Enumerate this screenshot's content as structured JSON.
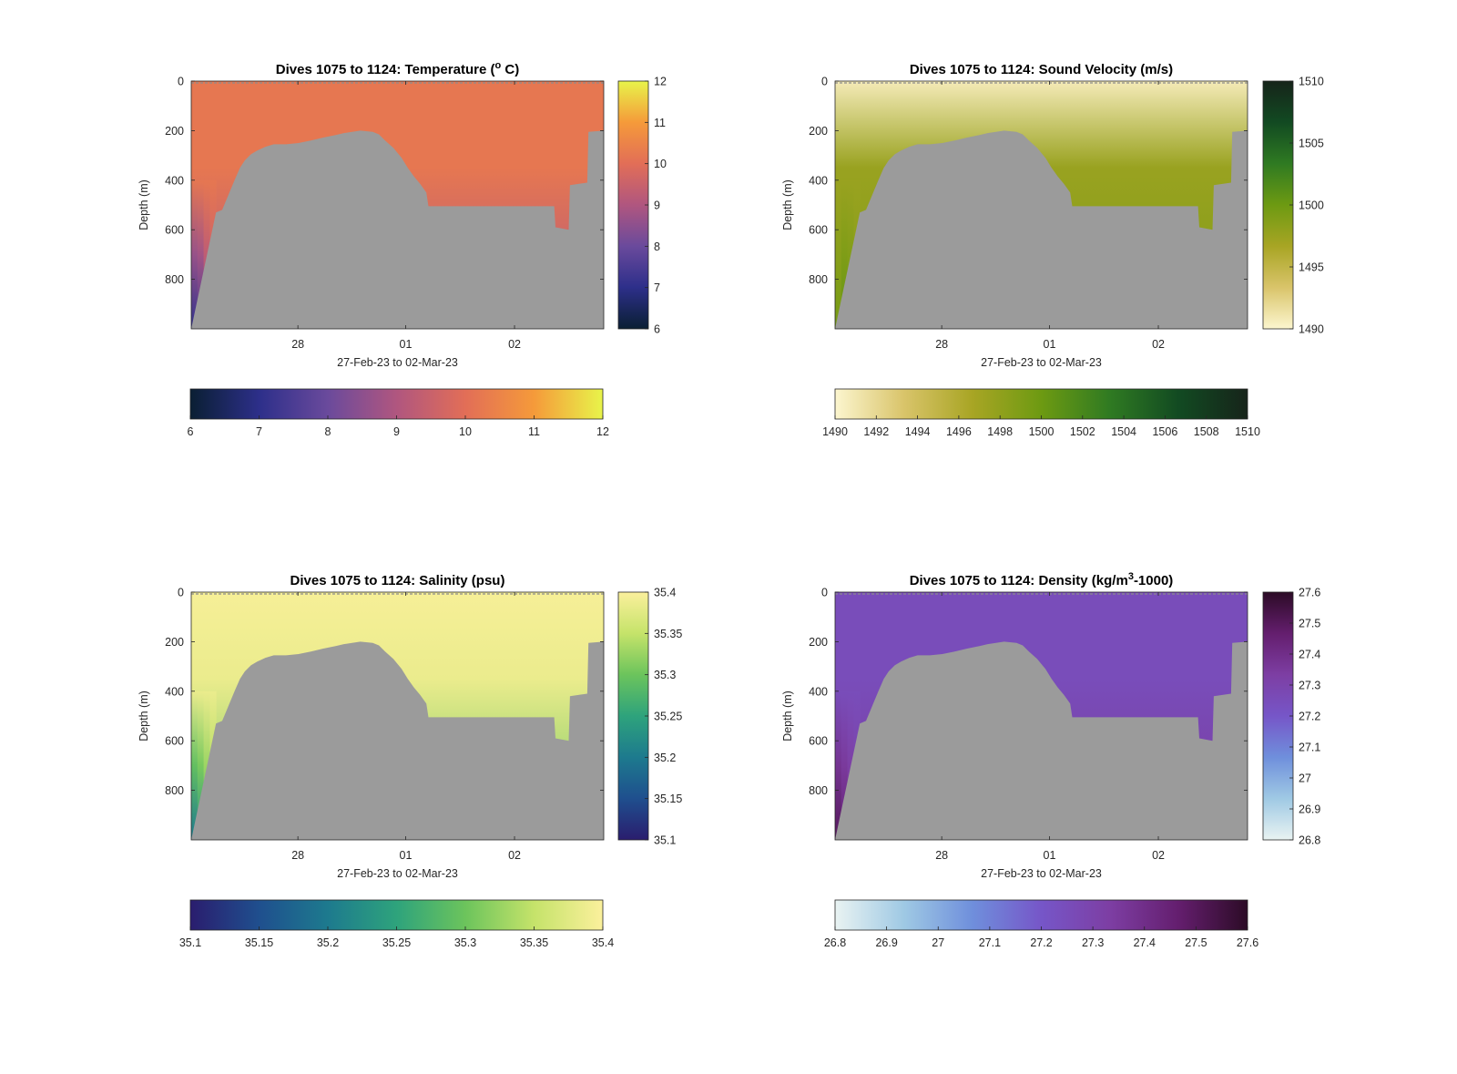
{
  "chart_data": [
    {
      "type": "heatmap",
      "title_main": "Dives 1075 to 1124: Temperature (",
      "title_sup": "o",
      "title_tail": " C)",
      "xlabel": "27-Feb-23 to 02-Mar-23",
      "ylabel": "Depth (m)",
      "x_ticks": [
        "28",
        "01",
        "02"
      ],
      "y_ticks": [
        "0",
        "200",
        "400",
        "600",
        "800"
      ],
      "ylim": [
        0,
        1000
      ],
      "colorbar_ticks": [
        "6",
        "7",
        "8",
        "9",
        "10",
        "11",
        "12"
      ],
      "h_colorbar_ticks": [
        "6",
        "7",
        "8",
        "9",
        "10",
        "11",
        "12"
      ],
      "clim": [
        6,
        12
      ],
      "colormap": [
        "#0a1f33",
        "#2d2f8a",
        "#6a4a9c",
        "#b0567f",
        "#e26e57",
        "#f59a3a",
        "#e8f44a"
      ],
      "surface_value": 10.2,
      "deep_values": [
        7.1,
        7.4,
        8.4,
        9.0
      ],
      "shallow_band": false
    },
    {
      "type": "heatmap",
      "title_main": "Dives 1075 to 1124: Sound Velocity (m/s)",
      "title_sup": "",
      "title_tail": "",
      "xlabel": "27-Feb-23 to 02-Mar-23",
      "ylabel": "Depth (m)",
      "x_ticks": [
        "28",
        "01",
        "02"
      ],
      "y_ticks": [
        "0",
        "200",
        "400",
        "600",
        "800"
      ],
      "ylim": [
        0,
        1000
      ],
      "colorbar_ticks": [
        "1490",
        "1495",
        "1500",
        "1505",
        "1510"
      ],
      "h_colorbar_ticks": [
        "1490",
        "1492",
        "1494",
        "1496",
        "1498",
        "1500",
        "1502",
        "1504",
        "1506",
        "1508",
        "1510"
      ],
      "clim": [
        1490,
        1510
      ],
      "colormap": [
        "#fcf6cf",
        "#d9c46a",
        "#a8a524",
        "#6d9a12",
        "#2f7a22",
        "#124a22",
        "#16241a"
      ],
      "surface_value": 1490.8,
      "mid_value": 1497.5,
      "deep_values": [
        1499.5,
        1500.5,
        1500.0,
        1499.0
      ],
      "shallow_band": true
    },
    {
      "type": "heatmap",
      "title_main": "Dives 1075 to 1124: Salinity (psu)",
      "title_sup": "",
      "title_tail": "",
      "xlabel": "27-Feb-23 to 02-Mar-23",
      "ylabel": "Depth (m)",
      "x_ticks": [
        "28",
        "01",
        "02"
      ],
      "y_ticks": [
        "0",
        "200",
        "400",
        "600",
        "800"
      ],
      "ylim": [
        0,
        1000
      ],
      "colorbar_ticks": [
        "35.1",
        "35.15",
        "35.2",
        "35.25",
        "35.3",
        "35.35",
        "35.4"
      ],
      "h_colorbar_ticks": [
        "35.1",
        "35.15",
        "35.2",
        "35.25",
        "35.3",
        "35.35",
        "35.4"
      ],
      "clim": [
        35.1,
        35.4
      ],
      "colormap": [
        "#2a1d6e",
        "#1f4f8e",
        "#1d7a8e",
        "#2ea37c",
        "#6cc45c",
        "#c5e36a",
        "#fbf09c"
      ],
      "surface_value": 35.395,
      "mid_value": 35.385,
      "deep_values": [
        35.2,
        35.23,
        35.27,
        35.3
      ],
      "shallow_band": false
    },
    {
      "type": "heatmap",
      "title_main": "Dives 1075 to 1124: Density (kg/m",
      "title_sup": "3",
      "title_tail": "-1000)",
      "xlabel": "27-Feb-23 to 02-Mar-23",
      "ylabel": "Depth (m)",
      "x_ticks": [
        "28",
        "01",
        "02"
      ],
      "y_ticks": [
        "0",
        "200",
        "400",
        "600",
        "800"
      ],
      "ylim": [
        0,
        1000
      ],
      "colorbar_ticks": [
        "26.8",
        "26.9",
        "27",
        "27.1",
        "27.2",
        "27.3",
        "27.4",
        "27.5",
        "27.6"
      ],
      "h_colorbar_ticks": [
        "26.8",
        "26.9",
        "27",
        "27.1",
        "27.2",
        "27.3",
        "27.4",
        "27.5",
        "27.6"
      ],
      "clim": [
        26.8,
        27.6
      ],
      "colormap": [
        "#e9f3f2",
        "#9fc9e4",
        "#6f8fdc",
        "#7656c8",
        "#7d3ea3",
        "#641e6e",
        "#2c0b26"
      ],
      "surface_value": 27.25,
      "deep_values": [
        27.5,
        27.45,
        27.4,
        27.35
      ],
      "shallow_band": false
    }
  ],
  "colors": {
    "seafloor": "#9b9b9b",
    "axis": "#262626"
  }
}
